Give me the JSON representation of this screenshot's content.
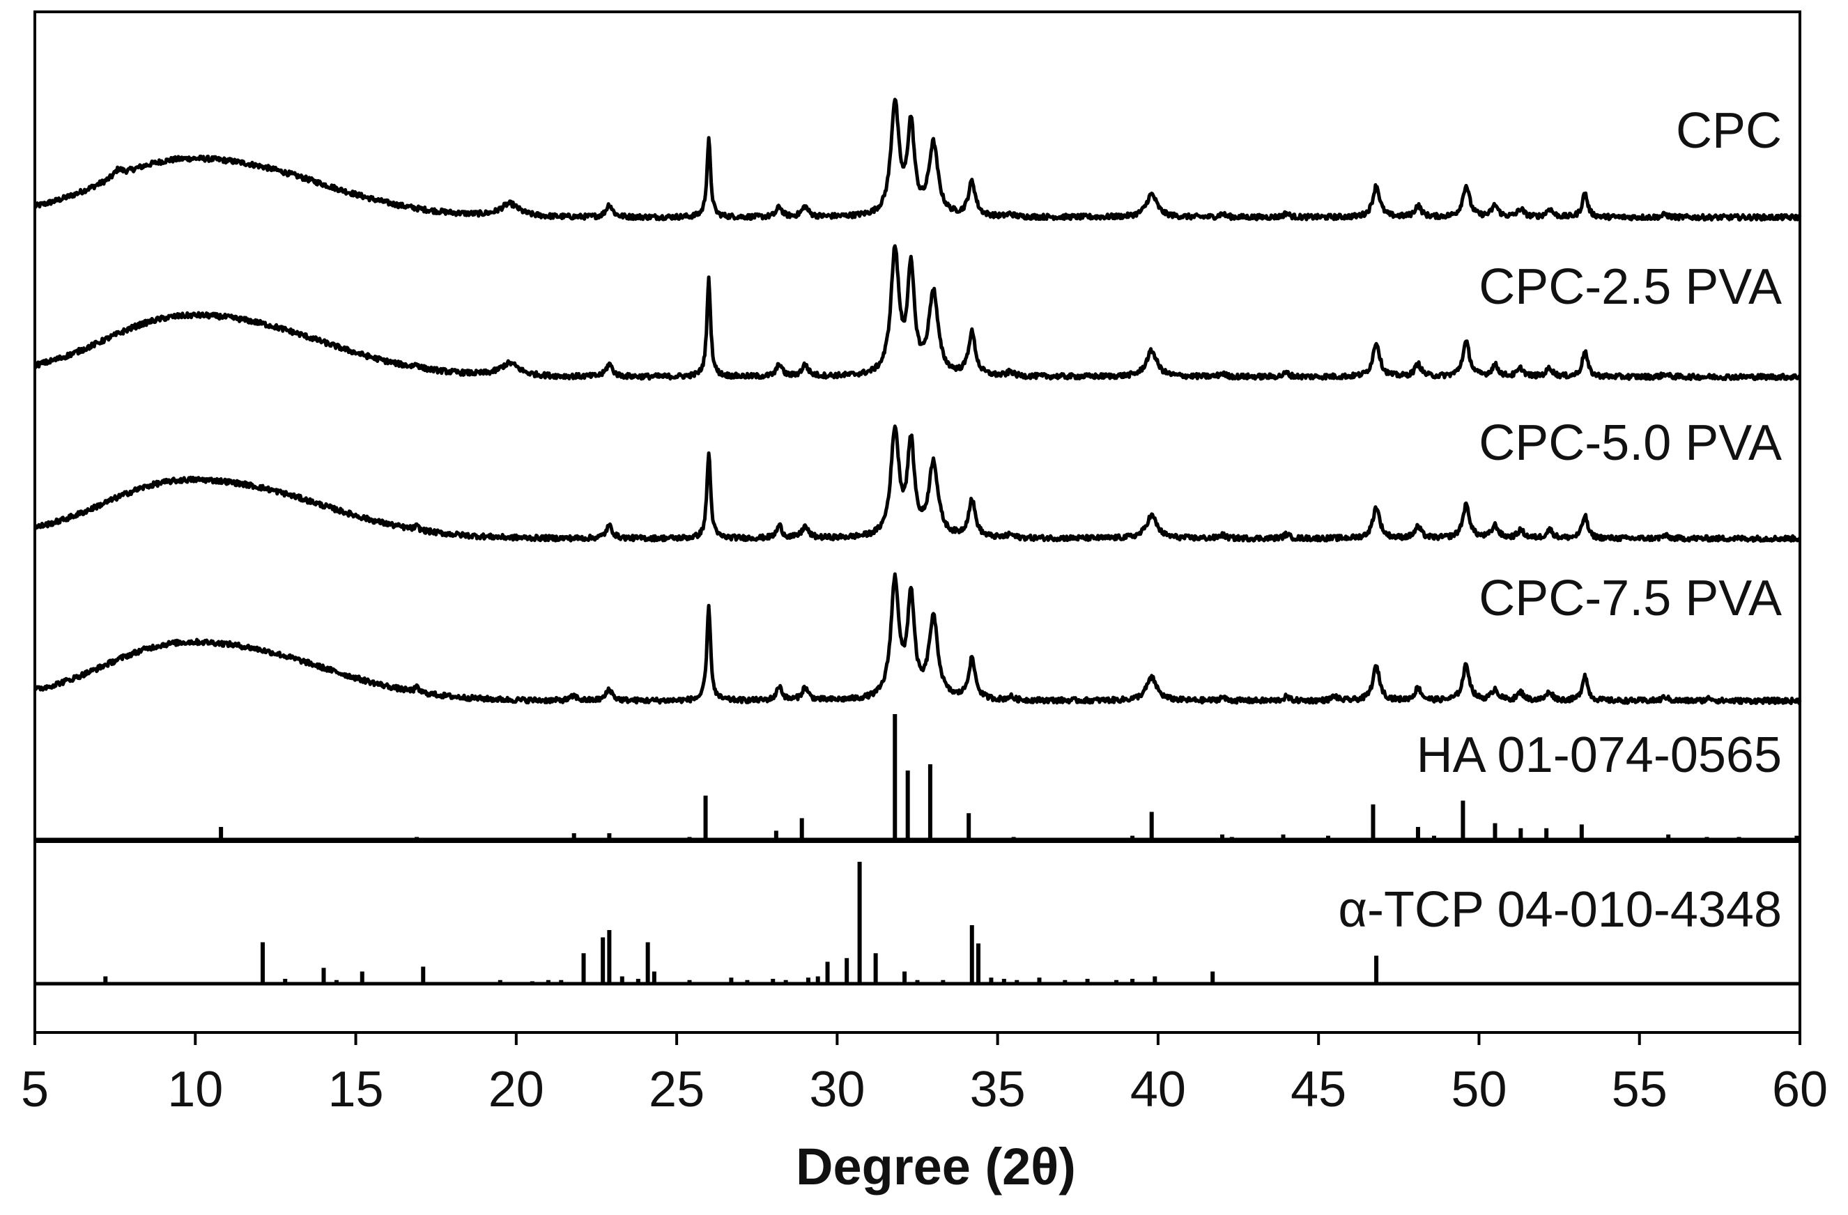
{
  "chart_data": {
    "type": "line",
    "title": "",
    "xlabel": "Degree (2θ)",
    "ylabel": "",
    "xlim": [
      5,
      60
    ],
    "x_ticks": [
      "5",
      "10",
      "15",
      "20",
      "25",
      "30",
      "35",
      "40",
      "45",
      "50",
      "55",
      "60"
    ],
    "grid": false,
    "panels": [
      "upper (CPC patterns + HA reference)",
      "lower (α-TCP reference)"
    ],
    "series": [
      {
        "name": "CPC",
        "baseline": 0,
        "broad_hump": {
          "center": 10.8,
          "width": 3.2,
          "height": 0.95
        },
        "peaks": [
          [
            7.6,
            0.12,
            0.15
          ],
          [
            19.8,
            0.22,
            0.35
          ],
          [
            22.9,
            0.22,
            0.12
          ],
          [
            26.0,
            1.35,
            0.07
          ],
          [
            28.2,
            0.18,
            0.1
          ],
          [
            29.0,
            0.18,
            0.12
          ],
          [
            31.8,
            1.95,
            0.15
          ],
          [
            32.3,
            1.55,
            0.13
          ],
          [
            33.0,
            1.25,
            0.17
          ],
          [
            34.2,
            0.6,
            0.13
          ],
          [
            35.4,
            0.05,
            0.1
          ],
          [
            39.8,
            0.4,
            0.2
          ],
          [
            42.0,
            0.06,
            0.1
          ],
          [
            44.0,
            0.07,
            0.1
          ],
          [
            46.8,
            0.55,
            0.13
          ],
          [
            48.1,
            0.2,
            0.12
          ],
          [
            49.6,
            0.55,
            0.13
          ],
          [
            50.5,
            0.2,
            0.12
          ],
          [
            51.3,
            0.14,
            0.12
          ],
          [
            52.2,
            0.14,
            0.12
          ],
          [
            53.3,
            0.42,
            0.1
          ],
          [
            55.8,
            0.05,
            0.1
          ]
        ]
      },
      {
        "name": "CPC-2.5 PVA",
        "baseline": 0,
        "broad_hump": {
          "center": 10.8,
          "width": 3.2,
          "height": 1.0
        },
        "peaks": [
          [
            16.9,
            0.06,
            0.08
          ],
          [
            19.8,
            0.22,
            0.35
          ],
          [
            22.9,
            0.22,
            0.12
          ],
          [
            26.0,
            1.7,
            0.07
          ],
          [
            28.2,
            0.22,
            0.1
          ],
          [
            29.0,
            0.2,
            0.12
          ],
          [
            31.8,
            2.15,
            0.15
          ],
          [
            32.3,
            1.8,
            0.13
          ],
          [
            33.0,
            1.45,
            0.17
          ],
          [
            34.2,
            0.75,
            0.13
          ],
          [
            35.4,
            0.08,
            0.1
          ],
          [
            39.8,
            0.45,
            0.2
          ],
          [
            42.0,
            0.06,
            0.1
          ],
          [
            44.0,
            0.07,
            0.1
          ],
          [
            46.8,
            0.6,
            0.13
          ],
          [
            48.1,
            0.22,
            0.12
          ],
          [
            49.6,
            0.6,
            0.13
          ],
          [
            50.5,
            0.2,
            0.12
          ],
          [
            51.3,
            0.14,
            0.12
          ],
          [
            52.2,
            0.15,
            0.12
          ],
          [
            53.3,
            0.45,
            0.1
          ],
          [
            55.8,
            0.05,
            0.1
          ]
        ]
      },
      {
        "name": "CPC-5.0 PVA",
        "baseline": 0,
        "broad_hump": {
          "center": 10.8,
          "width": 3.2,
          "height": 0.95
        },
        "peaks": [
          [
            16.9,
            0.06,
            0.08
          ],
          [
            22.9,
            0.22,
            0.12
          ],
          [
            26.0,
            1.5,
            0.07
          ],
          [
            28.2,
            0.22,
            0.1
          ],
          [
            29.0,
            0.2,
            0.12
          ],
          [
            31.8,
            1.85,
            0.15
          ],
          [
            32.3,
            1.6,
            0.13
          ],
          [
            33.0,
            1.3,
            0.17
          ],
          [
            34.2,
            0.65,
            0.13
          ],
          [
            35.4,
            0.06,
            0.1
          ],
          [
            39.8,
            0.4,
            0.2
          ],
          [
            42.0,
            0.06,
            0.1
          ],
          [
            44.0,
            0.07,
            0.1
          ],
          [
            46.8,
            0.55,
            0.13
          ],
          [
            48.1,
            0.2,
            0.12
          ],
          [
            49.6,
            0.58,
            0.13
          ],
          [
            50.5,
            0.22,
            0.12
          ],
          [
            51.3,
            0.14,
            0.12
          ],
          [
            52.2,
            0.15,
            0.12
          ],
          [
            53.3,
            0.4,
            0.1
          ],
          [
            55.8,
            0.05,
            0.1
          ]
        ]
      },
      {
        "name": "CPC-7.5 PVA",
        "baseline": 0,
        "broad_hump": {
          "center": 10.8,
          "width": 3.2,
          "height": 0.95
        },
        "peaks": [
          [
            16.9,
            0.08,
            0.08
          ],
          [
            21.8,
            0.08,
            0.12
          ],
          [
            22.9,
            0.2,
            0.12
          ],
          [
            26.0,
            1.65,
            0.07
          ],
          [
            28.2,
            0.25,
            0.1
          ],
          [
            29.0,
            0.22,
            0.12
          ],
          [
            31.8,
            2.05,
            0.15
          ],
          [
            32.3,
            1.75,
            0.13
          ],
          [
            33.0,
            1.4,
            0.17
          ],
          [
            34.2,
            0.7,
            0.13
          ],
          [
            35.4,
            0.06,
            0.1
          ],
          [
            39.8,
            0.4,
            0.2
          ],
          [
            42.0,
            0.06,
            0.1
          ],
          [
            44.0,
            0.07,
            0.1
          ],
          [
            45.5,
            0.08,
            0.1
          ],
          [
            46.8,
            0.6,
            0.13
          ],
          [
            48.1,
            0.22,
            0.12
          ],
          [
            49.6,
            0.62,
            0.13
          ],
          [
            50.5,
            0.2,
            0.12
          ],
          [
            51.3,
            0.14,
            0.12
          ],
          [
            52.2,
            0.15,
            0.12
          ],
          [
            53.3,
            0.45,
            0.1
          ],
          [
            55.8,
            0.07,
            0.1
          ],
          [
            57.2,
            0.05,
            0.1
          ]
        ]
      }
    ],
    "references": [
      {
        "name": "HA 01-074-0565",
        "sticks": [
          [
            10.8,
            0.1
          ],
          [
            16.9,
            0.02
          ],
          [
            18.8,
            0.01
          ],
          [
            21.8,
            0.05
          ],
          [
            22.9,
            0.05
          ],
          [
            25.4,
            0.02
          ],
          [
            25.9,
            0.35
          ],
          [
            28.1,
            0.07
          ],
          [
            28.9,
            0.17
          ],
          [
            31.8,
            1.0
          ],
          [
            32.2,
            0.55
          ],
          [
            32.9,
            0.6
          ],
          [
            34.1,
            0.21
          ],
          [
            35.5,
            0.02
          ],
          [
            39.2,
            0.03
          ],
          [
            39.8,
            0.22
          ],
          [
            42.0,
            0.04
          ],
          [
            42.3,
            0.02
          ],
          [
            43.9,
            0.04
          ],
          [
            45.3,
            0.03
          ],
          [
            46.7,
            0.28
          ],
          [
            48.1,
            0.1
          ],
          [
            48.6,
            0.03
          ],
          [
            49.5,
            0.31
          ],
          [
            50.5,
            0.13
          ],
          [
            51.3,
            0.09
          ],
          [
            52.1,
            0.09
          ],
          [
            53.2,
            0.12
          ],
          [
            55.9,
            0.04
          ],
          [
            57.1,
            0.02
          ],
          [
            58.1,
            0.02
          ],
          [
            59.9,
            0.03
          ]
        ]
      },
      {
        "name": "α-TCP 04-010-4348",
        "sticks": [
          [
            7.2,
            0.06
          ],
          [
            12.1,
            0.34
          ],
          [
            12.8,
            0.04
          ],
          [
            14.0,
            0.13
          ],
          [
            14.4,
            0.03
          ],
          [
            15.2,
            0.1
          ],
          [
            17.1,
            0.14
          ],
          [
            19.5,
            0.03
          ],
          [
            20.5,
            0.02
          ],
          [
            21.0,
            0.03
          ],
          [
            21.4,
            0.03
          ],
          [
            22.1,
            0.25
          ],
          [
            22.7,
            0.38
          ],
          [
            22.9,
            0.44
          ],
          [
            23.3,
            0.06
          ],
          [
            23.8,
            0.04
          ],
          [
            24.1,
            0.34
          ],
          [
            24.3,
            0.1
          ],
          [
            25.4,
            0.03
          ],
          [
            26.7,
            0.05
          ],
          [
            27.2,
            0.03
          ],
          [
            28.0,
            0.04
          ],
          [
            28.4,
            0.03
          ],
          [
            29.1,
            0.05
          ],
          [
            29.4,
            0.06
          ],
          [
            29.7,
            0.18
          ],
          [
            30.3,
            0.21
          ],
          [
            30.7,
            1.0
          ],
          [
            31.2,
            0.25
          ],
          [
            32.1,
            0.1
          ],
          [
            32.5,
            0.03
          ],
          [
            33.3,
            0.03
          ],
          [
            34.2,
            0.48
          ],
          [
            34.4,
            0.33
          ],
          [
            34.8,
            0.05
          ],
          [
            35.2,
            0.04
          ],
          [
            35.6,
            0.03
          ],
          [
            36.3,
            0.05
          ],
          [
            37.1,
            0.03
          ],
          [
            37.8,
            0.04
          ],
          [
            38.7,
            0.03
          ],
          [
            39.2,
            0.04
          ],
          [
            39.9,
            0.06
          ],
          [
            41.7,
            0.1
          ],
          [
            46.8,
            0.23
          ]
        ]
      }
    ]
  }
}
